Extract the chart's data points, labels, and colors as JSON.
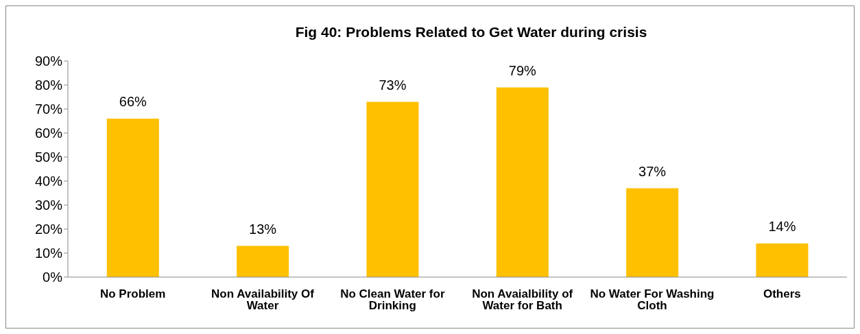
{
  "chart_data": {
    "type": "bar",
    "title": "Fig 40: Problems Related to Get Water during crisis",
    "categories": [
      "No Problem",
      "Non Availability Of Water",
      "No Clean Water for Drinking",
      "Non Avaialbility of Water for Bath",
      "No Water For Washing Cloth",
      "Others"
    ],
    "values": [
      66,
      13,
      73,
      79,
      37,
      14
    ],
    "value_labels": [
      "66%",
      "13%",
      "73%",
      "79%",
      "37%",
      "14%"
    ],
    "color": "#ffc000",
    "ylim": [
      0,
      90
    ],
    "yticks": [
      {
        "value": 0,
        "label": "0%"
      },
      {
        "value": 10,
        "label": "10%"
      },
      {
        "value": 20,
        "label": "20%"
      },
      {
        "value": 30,
        "label": "30%"
      },
      {
        "value": 40,
        "label": "40%"
      },
      {
        "value": 50,
        "label": "50%"
      },
      {
        "value": 60,
        "label": "60%"
      },
      {
        "value": 70,
        "label": "70%"
      },
      {
        "value": 80,
        "label": "80%"
      },
      {
        "value": 90,
        "label": "90%"
      }
    ],
    "grid": false,
    "legend": false
  }
}
